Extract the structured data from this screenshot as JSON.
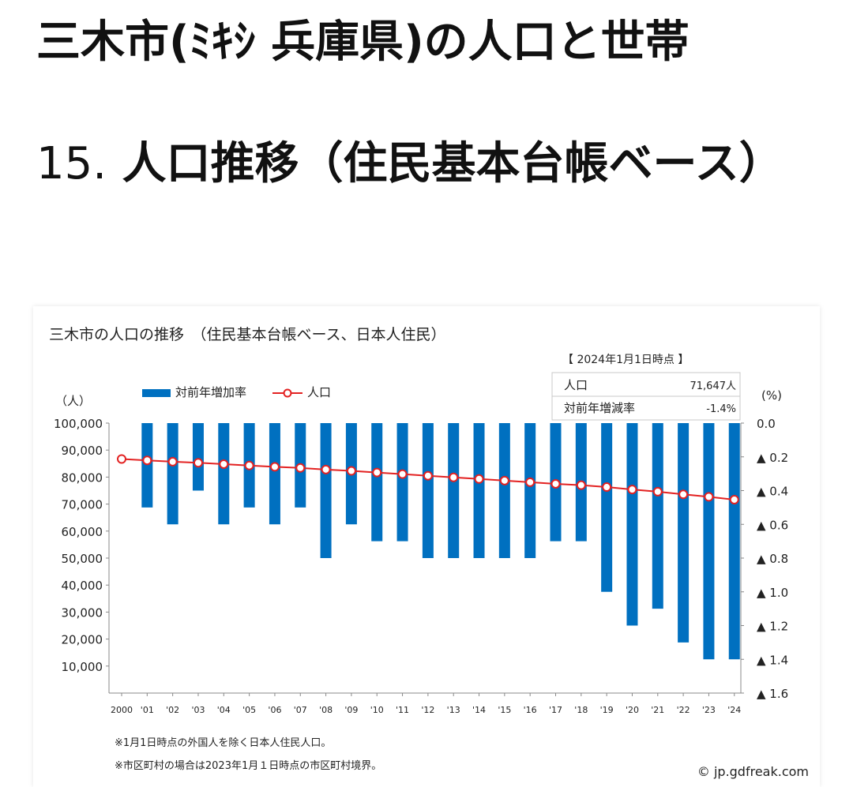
{
  "page": {
    "title": "三木市(ﾐｷｼ 兵庫県)の人口と世帯",
    "section_number": "15.",
    "section_title": " 人口推移（住民基本台帳ベース）"
  },
  "chart_data": {
    "type": "bar+line",
    "title": "三木市の人口の推移　（住民基本台帳ベース、日本人住民）",
    "info_box": {
      "header": "【 2024年1月1日時点 】",
      "rows": [
        {
          "label": "人口",
          "value": "71,647人"
        },
        {
          "label": "対前年増減率",
          "value": "-1.4%"
        }
      ]
    },
    "legend": [
      {
        "name": "対前年増加率",
        "kind": "bar",
        "color": "#0070c0"
      },
      {
        "name": "人口",
        "kind": "line",
        "color": "#e32222"
      }
    ],
    "left_axis": {
      "unit": "（人）",
      "ticks": [
        "100,000",
        "90,000",
        "80,000",
        "70,000",
        "60,000",
        "50,000",
        "40,000",
        "30,000",
        "20,000",
        "10,000"
      ],
      "range": [
        0,
        100000
      ]
    },
    "right_axis": {
      "unit": "(%)",
      "ticks": [
        "0.0",
        "▲ 0.2",
        "▲ 0.4",
        "▲ 0.6",
        "▲ 0.8",
        "▲ 1.0",
        "▲ 1.2",
        "▲ 1.4",
        "▲ 1.6"
      ],
      "range": [
        0,
        -1.6
      ]
    },
    "categories": [
      "2000",
      "'01",
      "'02",
      "'03",
      "'04",
      "'05",
      "'06",
      "'07",
      "'08",
      "'09",
      "'10",
      "'11",
      "'12",
      "'13",
      "'14",
      "'15",
      "'16",
      "'17",
      "'18",
      "'19",
      "'20",
      "'21",
      "'22",
      "'23",
      "'24"
    ],
    "growth_rate": [
      null,
      -0.5,
      -0.6,
      -0.4,
      -0.6,
      -0.5,
      -0.6,
      -0.5,
      -0.8,
      -0.6,
      -0.7,
      -0.7,
      -0.8,
      -0.8,
      -0.8,
      -0.8,
      -0.8,
      -0.7,
      -0.7,
      -1.0,
      -1.2,
      -1.1,
      -1.3,
      -1.4,
      -1.4
    ],
    "population": [
      86700,
      86200,
      85700,
      85300,
      84800,
      84300,
      83800,
      83400,
      82800,
      82300,
      81700,
      81100,
      80500,
      79900,
      79300,
      78700,
      78100,
      77500,
      77000,
      76300,
      75400,
      74600,
      73600,
      72700,
      71647
    ],
    "footnotes": [
      "※1月1日時点の外国人を除く日本人住民人口。",
      "※市区町村の場合は2023年1月１日時点の市区町村境界。"
    ],
    "credit": "© jp.gdfreak.com"
  }
}
